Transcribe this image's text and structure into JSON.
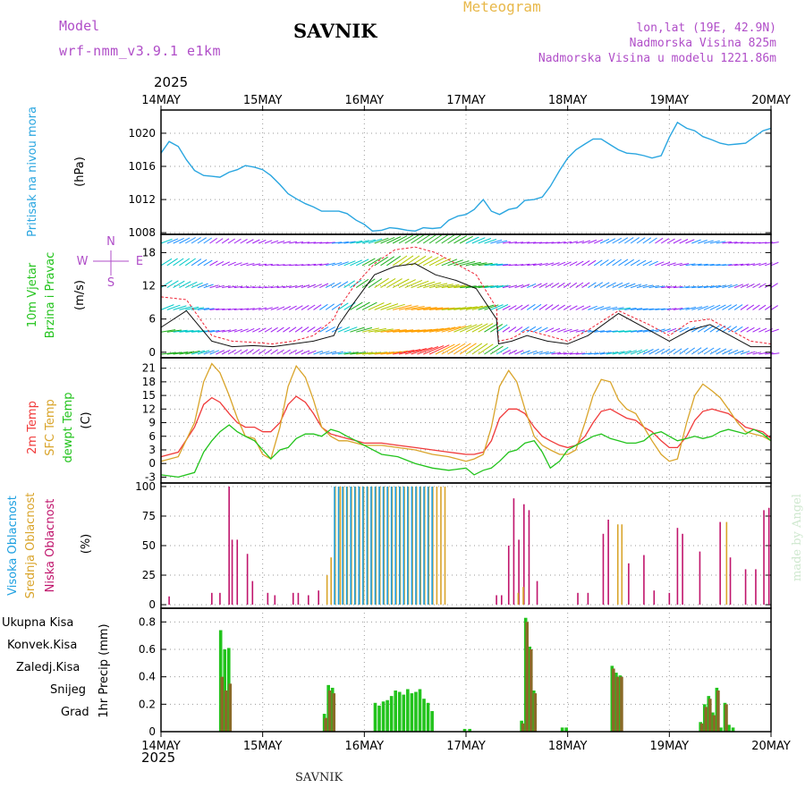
{
  "header": {
    "model_label": "Model",
    "model_name": "wrf-nmm_v3.9.1 e1km",
    "station": "SAVNIK",
    "product": "Meteogram",
    "coords": "lon,lat (19E, 42.9N)",
    "elevation": "Nadmorska Visina 825m",
    "model_elevation": "Nadmorska Visina u modelu 1221.86m",
    "footer_station": "SAVNIK",
    "credit": "made by Angel"
  },
  "colors": {
    "pressure": "#2aa6e0",
    "temp2m": "#f03a3a",
    "sfc_temp": "#d9a42a",
    "dewpoint": "#22c31c",
    "high_cloud": "#1fa0e0",
    "mid_cloud": "#d9a42a",
    "low_cloud": "#c0146c",
    "total_precip": "#22c31c",
    "conv_precip": "#f03a3a",
    "snow": "#3a3ad9",
    "graupel": "#3ac7c7",
    "frozen": "#f07a2a"
  },
  "time_axis": {
    "year": "2025",
    "labels": [
      "14MAY",
      "15MAY",
      "16MAY",
      "17MAY",
      "18MAY",
      "19MAY",
      "20MAY"
    ]
  },
  "chart_data": [
    {
      "type": "line",
      "name": "pressure",
      "ylabel": [
        "Pritisak na nivou mora",
        "(hPa)"
      ],
      "yticks": [
        1008,
        1012,
        1016,
        1020
      ],
      "ylim": [
        1007.8,
        1022.8
      ],
      "grid": true,
      "x_days": [
        0,
        0.08,
        0.17,
        0.25,
        0.33,
        0.42,
        0.5,
        0.58,
        0.67,
        0.75,
        0.83,
        0.92,
        1.0,
        1.08,
        1.17,
        1.25,
        1.33,
        1.42,
        1.5,
        1.58,
        1.67,
        1.75,
        1.83,
        1.92,
        2.0,
        2.08,
        2.17,
        2.25,
        2.33,
        2.42,
        2.5,
        2.58,
        2.67,
        2.75,
        2.83,
        2.92,
        3.0,
        3.08,
        3.17,
        3.25,
        3.33,
        3.42,
        3.5,
        3.58,
        3.67,
        3.75,
        3.83,
        3.92,
        4.0,
        4.08,
        4.17,
        4.25,
        4.33,
        4.42,
        4.5,
        4.58,
        4.67,
        4.75,
        4.83,
        4.92,
        5.0,
        5.08,
        5.17,
        5.25,
        5.33,
        5.42,
        5.5,
        5.58,
        5.67,
        5.75,
        5.83,
        5.92,
        6.0
      ],
      "series": [
        {
          "name": "pressure",
          "values": [
            1017.6,
            1019.0,
            1018.4,
            1016.8,
            1015.5,
            1014.9,
            1014.8,
            1014.7,
            1015.3,
            1015.6,
            1016.1,
            1015.9,
            1015.6,
            1014.9,
            1013.8,
            1012.7,
            1012.1,
            1011.5,
            1011.1,
            1010.6,
            1010.6,
            1010.6,
            1010.3,
            1009.5,
            1009.0,
            1008.2,
            1008.3,
            1008.6,
            1008.5,
            1008.3,
            1008.2,
            1008.6,
            1008.5,
            1008.6,
            1009.5,
            1010.0,
            1010.2,
            1010.8,
            1012.0,
            1010.6,
            1010.2,
            1010.8,
            1011.0,
            1011.9,
            1012.0,
            1012.3,
            1013.6,
            1015.5,
            1017.0,
            1018.0,
            1018.7,
            1019.3,
            1019.3,
            1018.6,
            1018.0,
            1017.6,
            1017.5,
            1017.3,
            1017.0,
            1017.3,
            1019.5,
            1021.3,
            1020.6,
            1020.3,
            1019.6,
            1019.2,
            1018.8,
            1018.6,
            1018.7,
            1018.8,
            1019.5,
            1020.3,
            1020.6
          ]
        }
      ]
    },
    {
      "type": "line",
      "name": "wind",
      "ylabel": [
        "10m Vjetar",
        "Brzina i Pravac",
        "(m/s)"
      ],
      "compass": [
        "N",
        "W",
        "E",
        "S"
      ],
      "yticks": [
        0,
        6,
        12,
        18
      ],
      "ylim": [
        -1,
        21.3
      ],
      "grid": true,
      "x_days": [
        0,
        0.25,
        0.5,
        0.7,
        0.9,
        1.1,
        1.3,
        1.5,
        1.7,
        1.75,
        1.9,
        2.1,
        2.3,
        2.5,
        2.7,
        2.9,
        3.1,
        3.3,
        3.32,
        3.45,
        3.6,
        3.8,
        4.0,
        4.2,
        4.5,
        4.8,
        5.0,
        5.2,
        5.4,
        5.6,
        5.8,
        6.0
      ],
      "series": [
        {
          "name": "wind speed",
          "values": [
            4.5,
            7.5,
            2.0,
            1.0,
            1.2,
            1.0,
            1.5,
            2.0,
            3.0,
            5.0,
            9.0,
            14.0,
            15.5,
            16.0,
            14.0,
            13.0,
            11.5,
            6.0,
            1.5,
            2.0,
            3.0,
            2.0,
            1.5,
            3.0,
            7.0,
            4.0,
            2.0,
            4.0,
            5.0,
            3.0,
            1.0,
            1.0
          ]
        },
        {
          "name": "gust",
          "values": [
            10.0,
            9.5,
            3.0,
            2.0,
            1.8,
            1.5,
            2.0,
            3.0,
            6.0,
            8.0,
            12.0,
            16.0,
            18.5,
            19.0,
            18.0,
            16.0,
            14.0,
            8.0,
            2.0,
            2.5,
            4.0,
            3.0,
            2.0,
            4.0,
            7.5,
            5.0,
            3.0,
            5.5,
            6.0,
            4.0,
            2.0,
            1.5
          ]
        }
      ]
    },
    {
      "type": "line",
      "name": "temperature",
      "ylabel": [
        "2m Temp",
        "SFC Temp",
        "dewpt Temp",
        "(C)"
      ],
      "yticks": [
        -3,
        0,
        3,
        6,
        9,
        12,
        15,
        18,
        21
      ],
      "ylim": [
        -4.3,
        23.3
      ],
      "grid": true,
      "x_days": [
        0,
        0.17,
        0.33,
        0.42,
        0.5,
        0.58,
        0.67,
        0.75,
        0.83,
        0.92,
        1.0,
        1.08,
        1.17,
        1.25,
        1.33,
        1.42,
        1.5,
        1.58,
        1.67,
        1.75,
        1.83,
        1.92,
        2.0,
        2.17,
        2.33,
        2.5,
        2.67,
        2.83,
        3.0,
        3.08,
        3.17,
        3.25,
        3.33,
        3.42,
        3.5,
        3.58,
        3.67,
        3.75,
        3.83,
        3.92,
        4.0,
        4.08,
        4.17,
        4.25,
        4.33,
        4.42,
        4.5,
        4.58,
        4.67,
        4.75,
        4.83,
        4.92,
        5.0,
        5.08,
        5.17,
        5.25,
        5.33,
        5.42,
        5.5,
        5.58,
        5.67,
        5.75,
        5.83,
        5.92,
        6.0
      ],
      "series": [
        {
          "name": "2m Temp",
          "values": [
            1.5,
            2.5,
            8.0,
            13.0,
            14.5,
            13.5,
            11.0,
            9.0,
            8.0,
            8.0,
            7.0,
            7.0,
            9.0,
            13.0,
            14.8,
            13.5,
            11.0,
            8.0,
            6.5,
            6.0,
            5.5,
            5.0,
            4.5,
            4.5,
            4.0,
            3.5,
            3.0,
            2.5,
            2.0,
            2.0,
            2.5,
            5.0,
            10.0,
            12.0,
            12.0,
            11.0,
            8.0,
            6.0,
            5.0,
            4.0,
            3.5,
            4.0,
            6.0,
            9.0,
            11.5,
            12.0,
            11.0,
            10.0,
            9.5,
            8.0,
            7.0,
            5.0,
            3.5,
            3.5,
            6.0,
            9.5,
            11.5,
            12.0,
            11.5,
            11.0,
            9.5,
            8.0,
            7.5,
            7.0,
            5.5
          ]
        },
        {
          "name": "SFC Temp",
          "values": [
            0.5,
            1.5,
            9.0,
            18.0,
            22.0,
            20.0,
            15.0,
            10.0,
            6.0,
            5.5,
            2.0,
            1.0,
            8.0,
            17.0,
            21.5,
            19.0,
            14.0,
            8.0,
            6.0,
            5.0,
            5.0,
            4.5,
            4.0,
            4.0,
            3.5,
            3.0,
            2.0,
            1.5,
            0.5,
            1.0,
            2.0,
            8.0,
            17.0,
            20.5,
            18.0,
            12.0,
            6.0,
            4.0,
            3.0,
            2.0,
            2.0,
            3.0,
            9.0,
            15.0,
            18.5,
            18.0,
            14.0,
            12.0,
            11.0,
            8.0,
            5.0,
            2.0,
            0.5,
            1.0,
            9.0,
            15.0,
            17.5,
            16.0,
            14.5,
            12.0,
            9.0,
            7.0,
            6.5,
            6.0,
            5.0
          ]
        },
        {
          "name": "dewpt Temp",
          "values": [
            -2.5,
            -3.0,
            -2.0,
            2.5,
            5.0,
            7.0,
            8.5,
            7.0,
            6.0,
            5.0,
            3.0,
            1.0,
            3.0,
            3.5,
            5.5,
            6.5,
            6.5,
            6.0,
            7.5,
            7.0,
            6.0,
            5.0,
            4.0,
            2.0,
            1.5,
            0.0,
            -1.0,
            -1.5,
            -1.0,
            -2.5,
            -1.5,
            -1.0,
            0.5,
            2.5,
            3.0,
            4.5,
            5.0,
            2.5,
            -1.0,
            0.5,
            3.0,
            4.0,
            5.0,
            6.0,
            6.5,
            5.5,
            5.0,
            4.5,
            4.5,
            5.0,
            6.5,
            7.0,
            6.0,
            5.0,
            5.5,
            6.0,
            5.5,
            6.0,
            7.0,
            7.5,
            7.0,
            6.5,
            7.5,
            6.5,
            5.0
          ]
        }
      ]
    },
    {
      "type": "bar",
      "name": "cloud cover",
      "ylabel": [
        "Visoka Oblacnost",
        "Srednja Oblacnost",
        "Niska Oblacnost",
        "(%)"
      ],
      "yticks": [
        0,
        25,
        50,
        75,
        100
      ],
      "ylim": [
        -3,
        103
      ],
      "grid": true,
      "series": [
        {
          "name": "Niska Oblacnost",
          "x_days": [
            0.08,
            0.5,
            0.58,
            0.67,
            0.7,
            0.75,
            0.85,
            0.9,
            1.05,
            1.12,
            1.3,
            1.35,
            1.45,
            1.55,
            3.3,
            3.35,
            3.42,
            3.47,
            3.52,
            3.57,
            3.62,
            3.7,
            4.1,
            4.2,
            4.35,
            4.4,
            4.6,
            4.75,
            4.85,
            5.0,
            5.08,
            5.13,
            5.3,
            5.5,
            5.6,
            5.75,
            5.85,
            5.93,
            5.98
          ],
          "values": [
            7,
            10,
            10,
            100,
            55,
            55,
            43,
            20,
            10,
            8,
            10,
            10,
            8,
            12,
            8,
            8,
            50,
            90,
            55,
            85,
            80,
            20,
            10,
            10,
            60,
            72,
            35,
            42,
            12,
            10,
            65,
            60,
            45,
            70,
            40,
            30,
            30,
            80,
            82
          ]
        },
        {
          "name": "Srednja Oblacnost",
          "x_days": [
            1.62,
            1.66,
            1.7,
            1.75,
            1.78,
            1.82,
            1.86,
            1.9,
            1.94,
            1.98,
            2.02,
            2.06,
            2.1,
            2.14,
            2.18,
            2.22,
            2.26,
            2.3,
            2.34,
            2.38,
            2.42,
            2.46,
            2.5,
            2.54,
            2.58,
            2.62,
            2.66,
            2.7,
            2.74,
            2.78,
            3.5,
            3.55,
            4.48,
            4.52,
            5.55
          ],
          "values": [
            25,
            40,
            100,
            100,
            100,
            100,
            100,
            100,
            100,
            100,
            100,
            100,
            100,
            100,
            100,
            100,
            100,
            100,
            100,
            100,
            100,
            100,
            100,
            100,
            100,
            100,
            100,
            100,
            100,
            100,
            10,
            15,
            68,
            68,
            70
          ]
        },
        {
          "name": "Visoka Oblacnost",
          "x_days": [
            1.72,
            1.76,
            1.8,
            1.84,
            1.88,
            1.92,
            1.96,
            2.0,
            2.04,
            2.08,
            2.12,
            2.16,
            2.2,
            2.24,
            2.28,
            2.32,
            2.36,
            2.4,
            2.44,
            2.48,
            2.52,
            2.56,
            2.6,
            2.64,
            2.68
          ],
          "values": [
            100,
            100,
            100,
            100,
            100,
            100,
            100,
            100,
            100,
            100,
            100,
            100,
            100,
            100,
            100,
            100,
            100,
            100,
            100,
            100,
            100,
            100,
            100,
            100,
            100
          ]
        }
      ]
    },
    {
      "type": "bar",
      "name": "precipitation",
      "ylabel": [
        "1hr Precip (mm)"
      ],
      "legend": [
        "Ukupna Kisa",
        "Konvek.Kisa",
        "Zaledj.Kisa",
        "Snijeg",
        "Grad"
      ],
      "yticks": [
        0,
        0.2,
        0.4,
        0.6,
        0.8
      ],
      "ylim": [
        0,
        0.9
      ],
      "grid": true,
      "series": [
        {
          "name": "Ukupna Kisa",
          "x_days": [
            0.6,
            0.64,
            0.68,
            1.62,
            1.66,
            1.7,
            2.12,
            2.16,
            2.2,
            2.24,
            2.28,
            2.32,
            2.36,
            2.4,
            2.44,
            2.48,
            2.52,
            2.56,
            2.6,
            2.64,
            2.68,
            3.0,
            3.05,
            3.56,
            3.6,
            3.64,
            3.68,
            3.96,
            4.0,
            4.45,
            4.49,
            4.53,
            5.32,
            5.36,
            5.4,
            5.44,
            5.48,
            5.52,
            5.56,
            5.6,
            5.64
          ],
          "values": [
            0.74,
            0.6,
            0.61,
            0.13,
            0.34,
            0.32,
            0.21,
            0.19,
            0.22,
            0.23,
            0.26,
            0.3,
            0.29,
            0.27,
            0.31,
            0.28,
            0.29,
            0.31,
            0.24,
            0.21,
            0.15,
            0.02,
            0.02,
            0.08,
            0.83,
            0.62,
            0.3,
            0.03,
            0.03,
            0.48,
            0.43,
            0.41,
            0.07,
            0.2,
            0.26,
            0.14,
            0.32,
            0.03,
            0.21,
            0.05,
            0.03
          ]
        },
        {
          "name": "Konvek.Kisa",
          "x_days": [
            0.6,
            0.64,
            0.68,
            1.62,
            1.66,
            1.7,
            3.56,
            3.6,
            3.64,
            3.68,
            4.45,
            4.49,
            4.53,
            5.32,
            5.36,
            5.4,
            5.44,
            5.48,
            5.56
          ],
          "values": [
            0.4,
            0.3,
            0.35,
            0.1,
            0.3,
            0.28,
            0.06,
            0.8,
            0.6,
            0.28,
            0.46,
            0.4,
            0.4,
            0.06,
            0.18,
            0.24,
            0.12,
            0.3,
            0.2
          ]
        }
      ]
    }
  ]
}
